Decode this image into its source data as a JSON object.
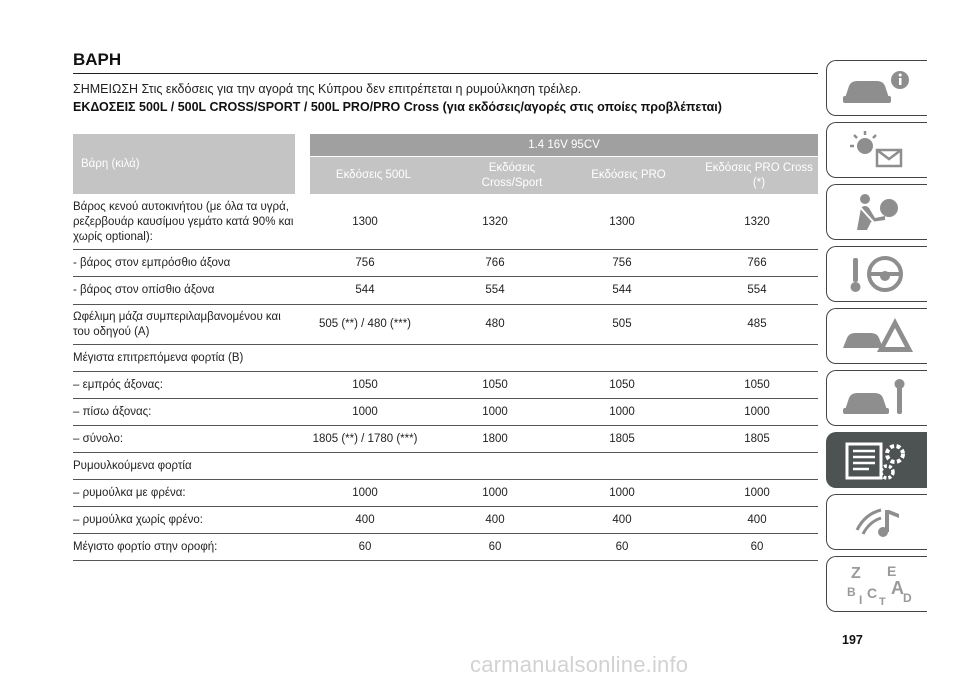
{
  "title": "ΒΑΡΗ",
  "note": "ΣΗΜΕΙΩΣΗ Στις εκδόσεις για την αγορά της Κύπρου δεν επιτρέπεται η ρυμούλκηση τρέιλερ.",
  "versions_heading": "ΕΚΔΟΣΕΙΣ 500L / 500L CROSS/SPORT / 500L PRO/PRO Cross (για εκδόσεις/αγορές στις οποίες προβλέπεται)",
  "table": {
    "corner_label": "Βάρη (κιλά)",
    "engine": "1.4 16V 95CV",
    "columns": [
      "Εκδόσεις 500L",
      "Εκδόσεις Cross/Sport",
      "Εκδόσεις PRO",
      "Εκδόσεις PRO Cross (*)"
    ],
    "rows": [
      {
        "label": "Βάρος κενού αυτοκινήτου (με όλα τα υγρά, ρεζερβουάρ καυσίμου γεμάτο κατά 90% και χωρίς optional):",
        "values": [
          "1300",
          "1320",
          "1300",
          "1320"
        ]
      },
      {
        "label": "- βάρος στον εμπρόσθιο άξονα",
        "values": [
          "756",
          "766",
          "756",
          "766"
        ]
      },
      {
        "label": "- βάρος στον οπίσθιο άξονα",
        "values": [
          "544",
          "554",
          "544",
          "554"
        ]
      },
      {
        "label": "Ωφέλιμη μάζα συμπεριλαμβανομένου και του οδηγού (A)",
        "values": [
          "505 (**) / 480 (***)",
          "480",
          "505",
          "485"
        ]
      },
      {
        "label": "Μέγιστα επιτρεπόμενα φορτία (B)",
        "values": [
          "",
          "",
          "",
          ""
        ]
      },
      {
        "label": "– εμπρός άξονας:",
        "values": [
          "1050",
          "1050",
          "1050",
          "1050"
        ]
      },
      {
        "label": "– πίσω άξονας:",
        "values": [
          "1000",
          "1000",
          "1000",
          "1000"
        ]
      },
      {
        "label": "– σύνολο:",
        "values": [
          "1805 (**) / 1780 (***)",
          "1800",
          "1805",
          "1805"
        ]
      },
      {
        "label": "Ρυμουλκούμενα φορτία",
        "values": [
          "",
          "",
          "",
          ""
        ]
      },
      {
        "label": "– ρυμούλκα με φρένα:",
        "values": [
          "1000",
          "1000",
          "1000",
          "1000"
        ]
      },
      {
        "label": "– ρυμούλκα χωρίς φρένο:",
        "values": [
          "400",
          "400",
          "400",
          "400"
        ]
      },
      {
        "label": "Μέγιστο φορτίο στην οροφή:",
        "values": [
          "60",
          "60",
          "60",
          "60"
        ]
      }
    ]
  },
  "side_tabs": [
    {
      "icon": "car-info-icon"
    },
    {
      "icon": "warning-lights-icon"
    },
    {
      "icon": "airbag-safety-icon"
    },
    {
      "icon": "steering-wheel-key-icon"
    },
    {
      "icon": "car-breakdown-icon"
    },
    {
      "icon": "car-maintenance-icon"
    },
    {
      "icon": "technical-data-icon",
      "active": true
    },
    {
      "icon": "multimedia-icon"
    },
    {
      "icon": "alphabetical-index-icon"
    }
  ],
  "tab_letters": [
    "Z",
    "E",
    "B",
    "A",
    "I",
    "C",
    "D",
    "T"
  ],
  "page_number": "197",
  "watermark": "carmanualsonline.info"
}
